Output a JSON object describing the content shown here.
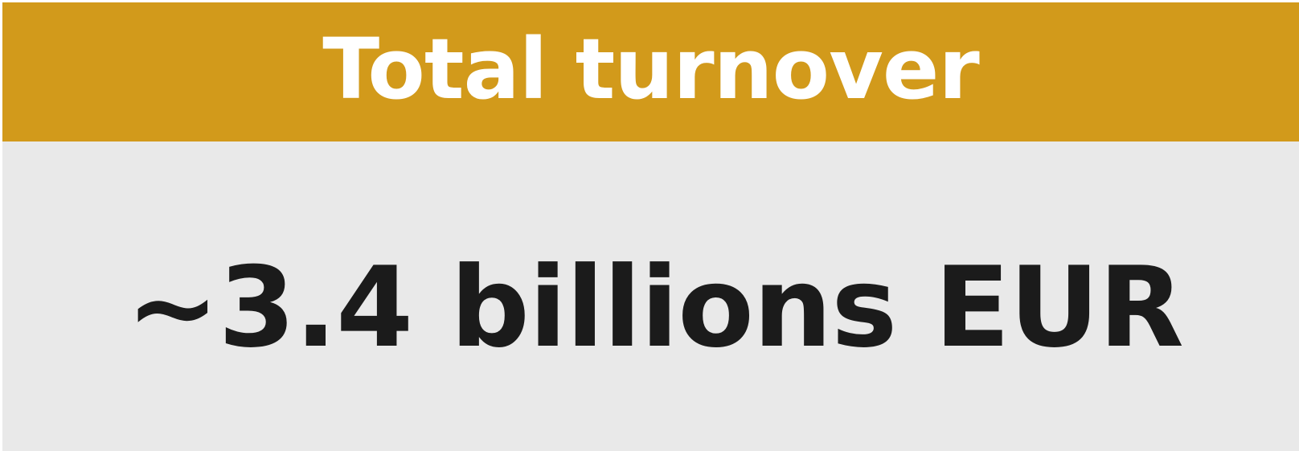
{
  "card": {
    "title": "Total turnover",
    "value": "~3.4 billions EUR"
  },
  "colors": {
    "header_bg": "#d29a1b",
    "body_bg": "#e9e9e9",
    "title_text": "#ffffff",
    "value_text": "#1b1b1b"
  }
}
